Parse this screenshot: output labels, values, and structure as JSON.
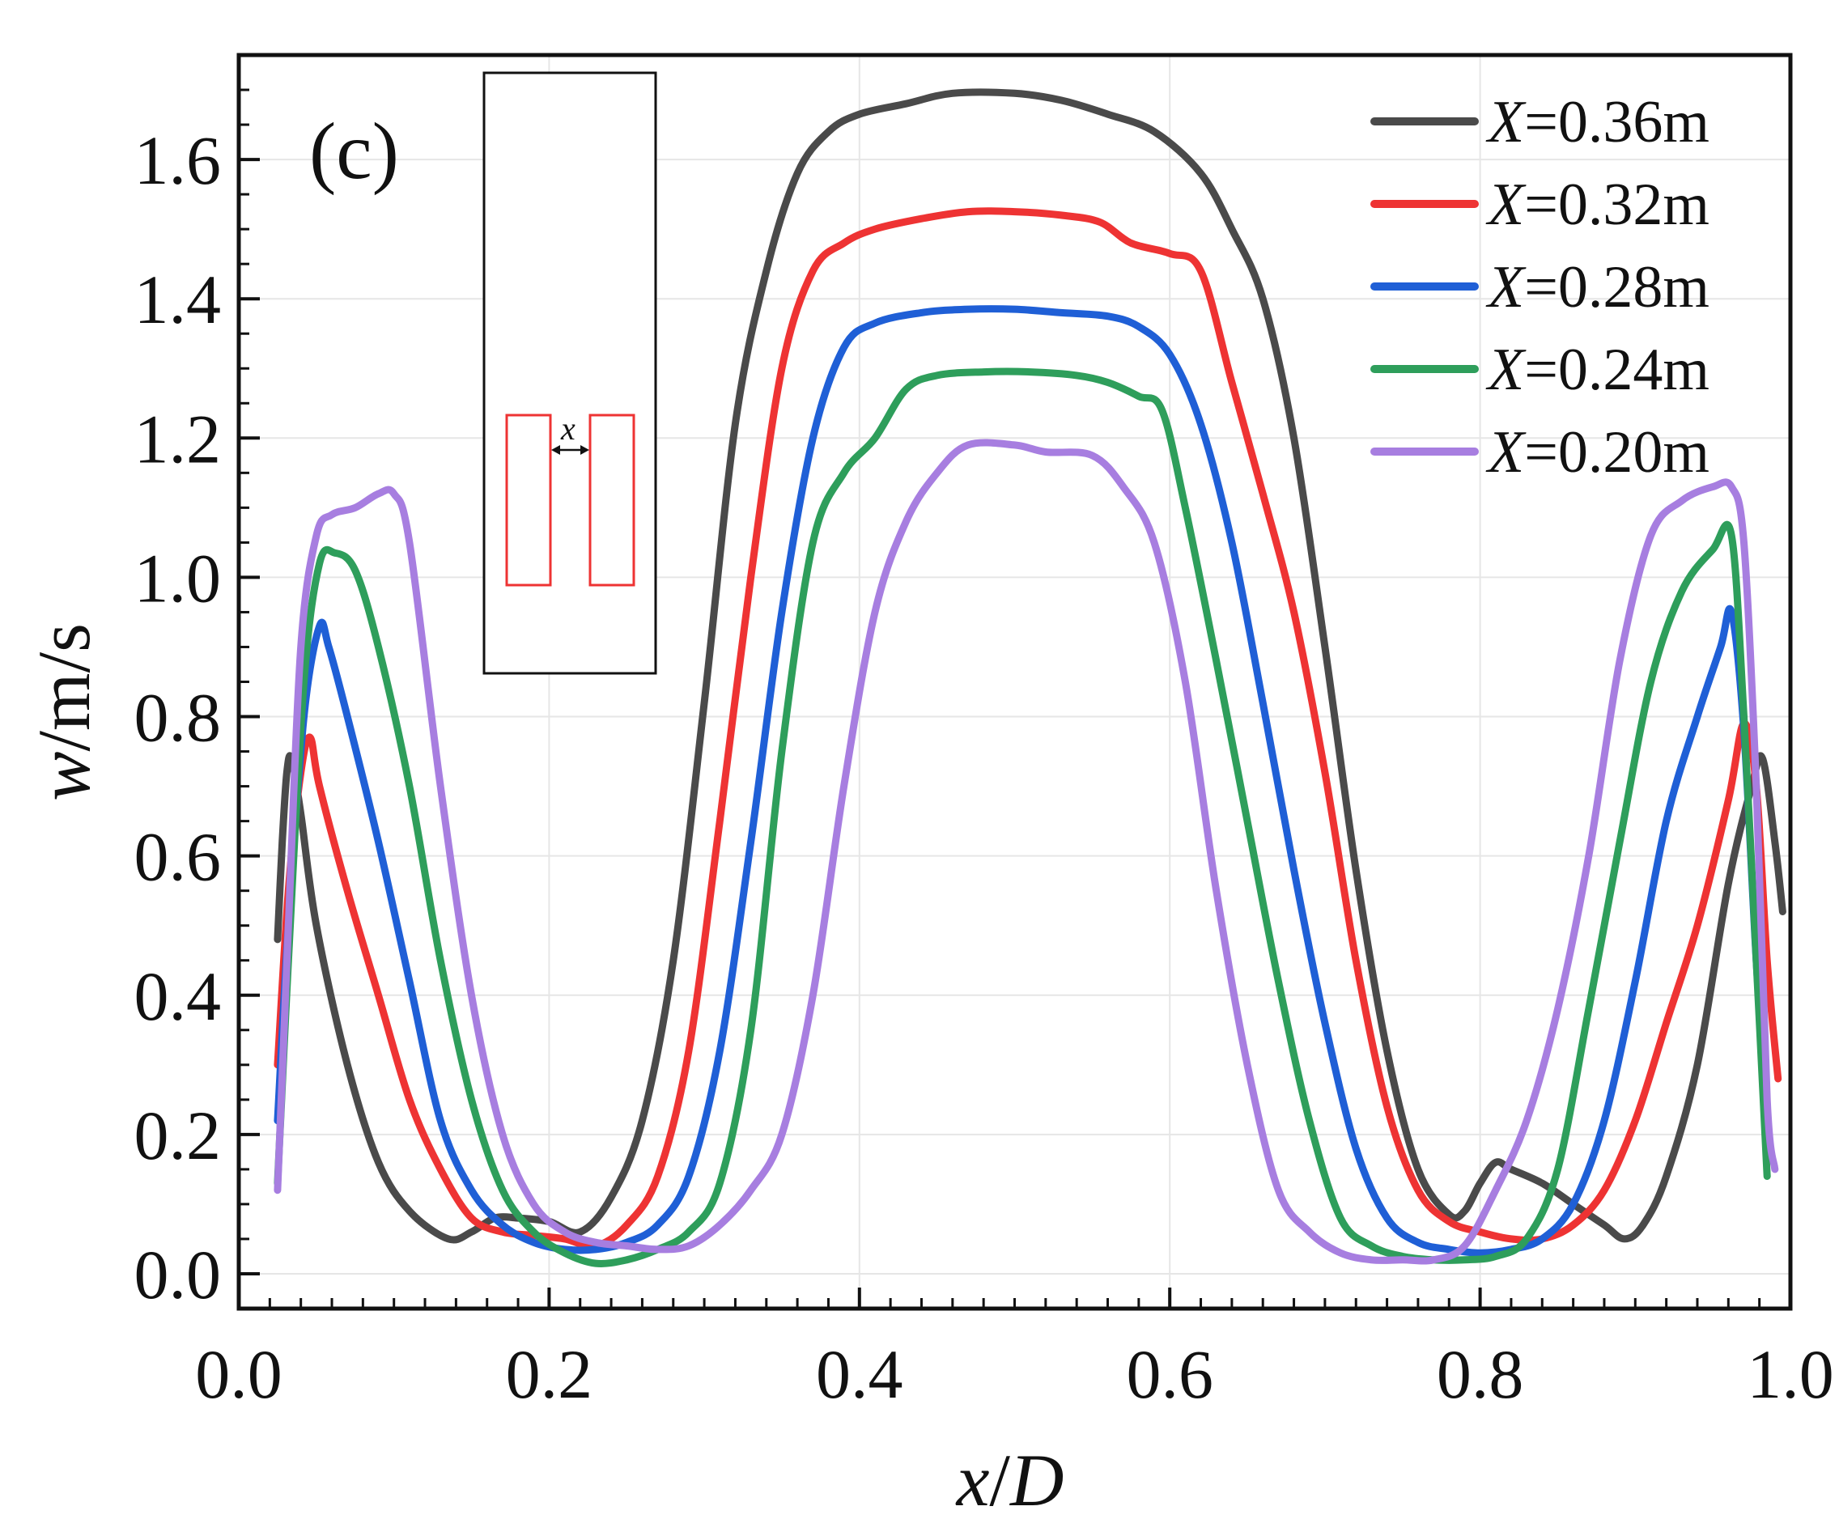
{
  "chart_data": {
    "type": "line",
    "panel_label": "(c)",
    "xlabel": "x/D",
    "ylabel": "w/m/s",
    "xlim": [
      0.0,
      1.0
    ],
    "ylim": [
      -0.05,
      1.75
    ],
    "xticks": [
      "0.0",
      "0.2",
      "0.4",
      "0.6",
      "0.8",
      "1.0"
    ],
    "yticks": [
      "0.0",
      "0.2",
      "0.4",
      "0.6",
      "0.8",
      "1.0",
      "1.2",
      "1.4",
      "1.6"
    ],
    "grid": true,
    "legend_position": "top-right",
    "inset": {
      "label": "x"
    },
    "series": [
      {
        "name": "X=0.36m",
        "legend_var": "X",
        "legend_value": "=0.36m",
        "color": "#4a4a4a",
        "points": [
          [
            0.025,
            0.48
          ],
          [
            0.028,
            0.62
          ],
          [
            0.031,
            0.72
          ],
          [
            0.034,
            0.74
          ],
          [
            0.04,
            0.66
          ],
          [
            0.05,
            0.5
          ],
          [
            0.07,
            0.3
          ],
          [
            0.09,
            0.16
          ],
          [
            0.11,
            0.09
          ],
          [
            0.135,
            0.05
          ],
          [
            0.15,
            0.06
          ],
          [
            0.165,
            0.08
          ],
          [
            0.18,
            0.08
          ],
          [
            0.2,
            0.075
          ],
          [
            0.22,
            0.06
          ],
          [
            0.24,
            0.11
          ],
          [
            0.26,
            0.22
          ],
          [
            0.28,
            0.45
          ],
          [
            0.3,
            0.82
          ],
          [
            0.32,
            1.22
          ],
          [
            0.34,
            1.44
          ],
          [
            0.36,
            1.58
          ],
          [
            0.38,
            1.64
          ],
          [
            0.4,
            1.665
          ],
          [
            0.43,
            1.68
          ],
          [
            0.46,
            1.695
          ],
          [
            0.5,
            1.695
          ],
          [
            0.53,
            1.685
          ],
          [
            0.56,
            1.665
          ],
          [
            0.59,
            1.64
          ],
          [
            0.62,
            1.58
          ],
          [
            0.64,
            1.5
          ],
          [
            0.66,
            1.4
          ],
          [
            0.68,
            1.2
          ],
          [
            0.7,
            0.9
          ],
          [
            0.72,
            0.58
          ],
          [
            0.74,
            0.32
          ],
          [
            0.76,
            0.15
          ],
          [
            0.78,
            0.085
          ],
          [
            0.79,
            0.09
          ],
          [
            0.8,
            0.13
          ],
          [
            0.81,
            0.16
          ],
          [
            0.82,
            0.15
          ],
          [
            0.84,
            0.13
          ],
          [
            0.86,
            0.1
          ],
          [
            0.88,
            0.07
          ],
          [
            0.893,
            0.05
          ],
          [
            0.905,
            0.07
          ],
          [
            0.92,
            0.14
          ],
          [
            0.94,
            0.3
          ],
          [
            0.96,
            0.56
          ],
          [
            0.975,
            0.7
          ],
          [
            0.982,
            0.74
          ],
          [
            0.99,
            0.62
          ],
          [
            0.995,
            0.52
          ]
        ]
      },
      {
        "name": "X=0.32m",
        "legend_var": "X",
        "legend_value": "=0.32m",
        "color": "#ee3333",
        "points": [
          [
            0.025,
            0.3
          ],
          [
            0.032,
            0.55
          ],
          [
            0.04,
            0.72
          ],
          [
            0.046,
            0.77
          ],
          [
            0.052,
            0.7
          ],
          [
            0.07,
            0.55
          ],
          [
            0.09,
            0.4
          ],
          [
            0.11,
            0.25
          ],
          [
            0.13,
            0.15
          ],
          [
            0.15,
            0.08
          ],
          [
            0.17,
            0.06
          ],
          [
            0.19,
            0.055
          ],
          [
            0.21,
            0.05
          ],
          [
            0.23,
            0.04
          ],
          [
            0.25,
            0.07
          ],
          [
            0.27,
            0.14
          ],
          [
            0.29,
            0.32
          ],
          [
            0.31,
            0.65
          ],
          [
            0.33,
            1.0
          ],
          [
            0.35,
            1.3
          ],
          [
            0.37,
            1.44
          ],
          [
            0.39,
            1.48
          ],
          [
            0.41,
            1.5
          ],
          [
            0.44,
            1.515
          ],
          [
            0.47,
            1.525
          ],
          [
            0.5,
            1.525
          ],
          [
            0.53,
            1.52
          ],
          [
            0.555,
            1.51
          ],
          [
            0.575,
            1.48
          ],
          [
            0.6,
            1.465
          ],
          [
            0.62,
            1.44
          ],
          [
            0.64,
            1.28
          ],
          [
            0.66,
            1.12
          ],
          [
            0.68,
            0.95
          ],
          [
            0.7,
            0.72
          ],
          [
            0.72,
            0.45
          ],
          [
            0.74,
            0.24
          ],
          [
            0.76,
            0.12
          ],
          [
            0.78,
            0.075
          ],
          [
            0.8,
            0.06
          ],
          [
            0.82,
            0.05
          ],
          [
            0.84,
            0.05
          ],
          [
            0.86,
            0.07
          ],
          [
            0.88,
            0.12
          ],
          [
            0.9,
            0.22
          ],
          [
            0.92,
            0.36
          ],
          [
            0.94,
            0.5
          ],
          [
            0.96,
            0.68
          ],
          [
            0.97,
            0.79
          ],
          [
            0.978,
            0.7
          ],
          [
            0.985,
            0.45
          ],
          [
            0.992,
            0.28
          ]
        ]
      },
      {
        "name": "X=0.28m",
        "legend_var": "X",
        "legend_value": "=0.28m",
        "color": "#1f5fd6",
        "points": [
          [
            0.025,
            0.22
          ],
          [
            0.032,
            0.5
          ],
          [
            0.042,
            0.8
          ],
          [
            0.052,
            0.93
          ],
          [
            0.058,
            0.9
          ],
          [
            0.07,
            0.8
          ],
          [
            0.09,
            0.62
          ],
          [
            0.11,
            0.42
          ],
          [
            0.13,
            0.22
          ],
          [
            0.15,
            0.12
          ],
          [
            0.17,
            0.07
          ],
          [
            0.19,
            0.045
          ],
          [
            0.21,
            0.035
          ],
          [
            0.23,
            0.035
          ],
          [
            0.25,
            0.045
          ],
          [
            0.27,
            0.07
          ],
          [
            0.29,
            0.14
          ],
          [
            0.31,
            0.32
          ],
          [
            0.33,
            0.62
          ],
          [
            0.35,
            0.95
          ],
          [
            0.37,
            1.2
          ],
          [
            0.39,
            1.33
          ],
          [
            0.41,
            1.365
          ],
          [
            0.44,
            1.38
          ],
          [
            0.47,
            1.385
          ],
          [
            0.5,
            1.385
          ],
          [
            0.53,
            1.38
          ],
          [
            0.56,
            1.375
          ],
          [
            0.58,
            1.36
          ],
          [
            0.6,
            1.32
          ],
          [
            0.62,
            1.22
          ],
          [
            0.64,
            1.05
          ],
          [
            0.66,
            0.82
          ],
          [
            0.68,
            0.58
          ],
          [
            0.7,
            0.36
          ],
          [
            0.72,
            0.18
          ],
          [
            0.74,
            0.08
          ],
          [
            0.76,
            0.045
          ],
          [
            0.78,
            0.035
          ],
          [
            0.8,
            0.03
          ],
          [
            0.82,
            0.035
          ],
          [
            0.84,
            0.05
          ],
          [
            0.86,
            0.1
          ],
          [
            0.88,
            0.22
          ],
          [
            0.9,
            0.42
          ],
          [
            0.92,
            0.65
          ],
          [
            0.94,
            0.8
          ],
          [
            0.955,
            0.9
          ],
          [
            0.962,
            0.95
          ],
          [
            0.97,
            0.78
          ],
          [
            0.978,
            0.45
          ],
          [
            0.985,
            0.22
          ]
        ]
      },
      {
        "name": "X=0.24m",
        "legend_var": "X",
        "legend_value": "=0.24m",
        "color": "#2e9e5b",
        "points": [
          [
            0.025,
            0.13
          ],
          [
            0.032,
            0.45
          ],
          [
            0.042,
            0.85
          ],
          [
            0.052,
            1.02
          ],
          [
            0.062,
            1.035
          ],
          [
            0.075,
            1.01
          ],
          [
            0.09,
            0.9
          ],
          [
            0.11,
            0.7
          ],
          [
            0.13,
            0.45
          ],
          [
            0.15,
            0.25
          ],
          [
            0.17,
            0.12
          ],
          [
            0.19,
            0.06
          ],
          [
            0.21,
            0.03
          ],
          [
            0.23,
            0.015
          ],
          [
            0.25,
            0.02
          ],
          [
            0.27,
            0.035
          ],
          [
            0.29,
            0.06
          ],
          [
            0.31,
            0.13
          ],
          [
            0.33,
            0.35
          ],
          [
            0.35,
            0.75
          ],
          [
            0.37,
            1.05
          ],
          [
            0.39,
            1.15
          ],
          [
            0.41,
            1.2
          ],
          [
            0.43,
            1.27
          ],
          [
            0.45,
            1.29
          ],
          [
            0.48,
            1.295
          ],
          [
            0.51,
            1.295
          ],
          [
            0.54,
            1.29
          ],
          [
            0.56,
            1.28
          ],
          [
            0.58,
            1.26
          ],
          [
            0.595,
            1.24
          ],
          [
            0.61,
            1.1
          ],
          [
            0.63,
            0.88
          ],
          [
            0.65,
            0.65
          ],
          [
            0.67,
            0.42
          ],
          [
            0.69,
            0.22
          ],
          [
            0.71,
            0.08
          ],
          [
            0.73,
            0.04
          ],
          [
            0.75,
            0.025
          ],
          [
            0.77,
            0.02
          ],
          [
            0.79,
            0.02
          ],
          [
            0.81,
            0.025
          ],
          [
            0.83,
            0.05
          ],
          [
            0.85,
            0.15
          ],
          [
            0.87,
            0.38
          ],
          [
            0.89,
            0.62
          ],
          [
            0.91,
            0.85
          ],
          [
            0.93,
            0.98
          ],
          [
            0.95,
            1.04
          ],
          [
            0.962,
            1.06
          ],
          [
            0.97,
            0.8
          ],
          [
            0.978,
            0.45
          ],
          [
            0.985,
            0.14
          ]
        ]
      },
      {
        "name": "X=0.20m",
        "legend_var": "X",
        "legend_value": "=0.20m",
        "color": "#a77ee0",
        "points": [
          [
            0.025,
            0.12
          ],
          [
            0.032,
            0.5
          ],
          [
            0.04,
            0.9
          ],
          [
            0.05,
            1.06
          ],
          [
            0.06,
            1.09
          ],
          [
            0.075,
            1.1
          ],
          [
            0.09,
            1.12
          ],
          [
            0.1,
            1.12
          ],
          [
            0.11,
            1.05
          ],
          [
            0.13,
            0.7
          ],
          [
            0.15,
            0.4
          ],
          [
            0.17,
            0.2
          ],
          [
            0.19,
            0.1
          ],
          [
            0.21,
            0.06
          ],
          [
            0.23,
            0.045
          ],
          [
            0.25,
            0.04
          ],
          [
            0.27,
            0.035
          ],
          [
            0.29,
            0.04
          ],
          [
            0.31,
            0.07
          ],
          [
            0.33,
            0.12
          ],
          [
            0.35,
            0.2
          ],
          [
            0.37,
            0.4
          ],
          [
            0.39,
            0.7
          ],
          [
            0.41,
            0.95
          ],
          [
            0.43,
            1.08
          ],
          [
            0.45,
            1.15
          ],
          [
            0.47,
            1.19
          ],
          [
            0.5,
            1.19
          ],
          [
            0.52,
            1.18
          ],
          [
            0.55,
            1.175
          ],
          [
            0.57,
            1.13
          ],
          [
            0.59,
            1.05
          ],
          [
            0.61,
            0.85
          ],
          [
            0.63,
            0.55
          ],
          [
            0.65,
            0.3
          ],
          [
            0.67,
            0.12
          ],
          [
            0.69,
            0.06
          ],
          [
            0.71,
            0.03
          ],
          [
            0.73,
            0.02
          ],
          [
            0.75,
            0.02
          ],
          [
            0.77,
            0.02
          ],
          [
            0.79,
            0.04
          ],
          [
            0.81,
            0.12
          ],
          [
            0.83,
            0.22
          ],
          [
            0.85,
            0.38
          ],
          [
            0.87,
            0.6
          ],
          [
            0.89,
            0.88
          ],
          [
            0.91,
            1.06
          ],
          [
            0.93,
            1.11
          ],
          [
            0.95,
            1.13
          ],
          [
            0.962,
            1.13
          ],
          [
            0.97,
            1.05
          ],
          [
            0.978,
            0.7
          ],
          [
            0.985,
            0.25
          ],
          [
            0.99,
            0.15
          ]
        ]
      }
    ]
  }
}
